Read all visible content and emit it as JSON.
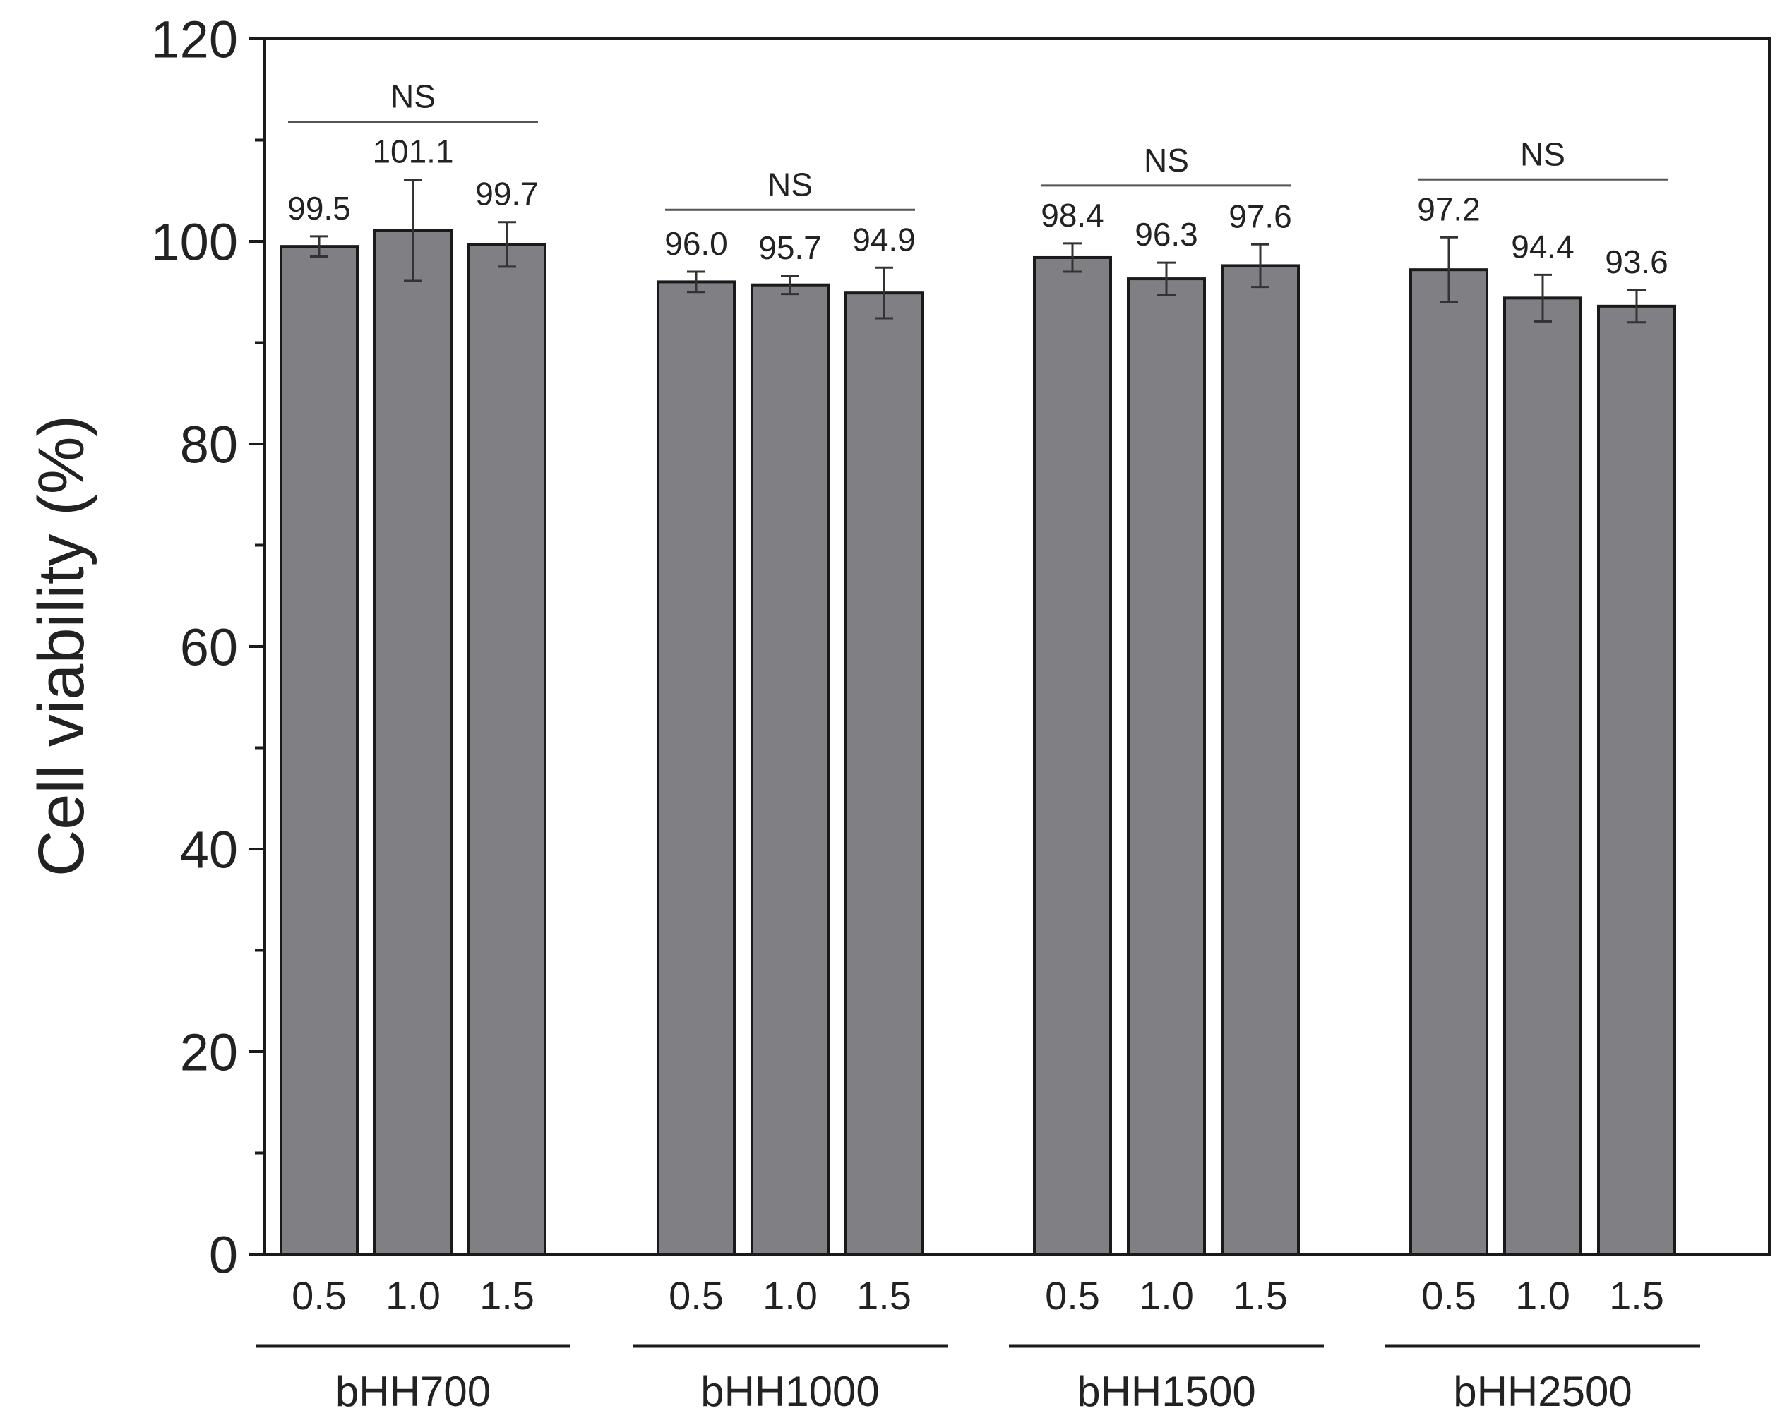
{
  "chart_data": {
    "type": "bar",
    "ylabel": "Cell viability (%)",
    "ylim": [
      0,
      120
    ],
    "yticks": [
      0,
      20,
      40,
      60,
      80,
      100,
      120
    ],
    "minor_ytick_step": 10,
    "grid": false,
    "bar_color": "#808084",
    "groups": [
      {
        "name": "bHH700",
        "significance": "NS",
        "bars": [
          {
            "category": "0.5",
            "value": 99.5,
            "label": "99.5",
            "error": 1.0
          },
          {
            "category": "1.0",
            "value": 101.1,
            "label": "101.1",
            "error": 5.0
          },
          {
            "category": "1.5",
            "value": 99.7,
            "label": "99.7",
            "error": 2.2
          }
        ]
      },
      {
        "name": "bHH1000",
        "significance": "NS",
        "bars": [
          {
            "category": "0.5",
            "value": 96.0,
            "label": "96.0",
            "error": 1.0
          },
          {
            "category": "1.0",
            "value": 95.7,
            "label": "95.7",
            "error": 0.9
          },
          {
            "category": "1.5",
            "value": 94.9,
            "label": "94.9",
            "error": 2.5
          }
        ]
      },
      {
        "name": "bHH1500",
        "significance": "NS",
        "bars": [
          {
            "category": "0.5",
            "value": 98.4,
            "label": "98.4",
            "error": 1.4
          },
          {
            "category": "1.0",
            "value": 96.3,
            "label": "96.3",
            "error": 1.6
          },
          {
            "category": "1.5",
            "value": 97.6,
            "label": "97.6",
            "error": 2.1
          }
        ]
      },
      {
        "name": "bHH2500",
        "significance": "NS",
        "bars": [
          {
            "category": "0.5",
            "value": 97.2,
            "label": "97.2",
            "error": 3.2
          },
          {
            "category": "1.0",
            "value": 94.4,
            "label": "94.4",
            "error": 2.3
          },
          {
            "category": "1.5",
            "value": 93.6,
            "label": "93.6",
            "error": 1.6
          }
        ]
      }
    ]
  }
}
